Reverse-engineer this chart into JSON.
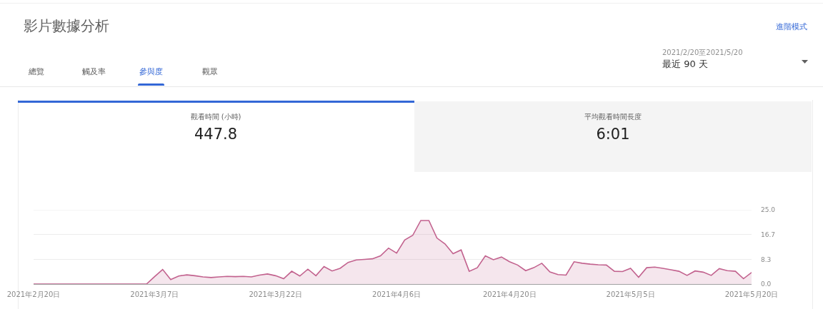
{
  "chart_data": {
    "type": "area",
    "title": "影片數據分析",
    "annotations": [
      "進階模式",
      "總覽",
      "觸及率",
      "參與度",
      "觀眾",
      "2021/2/20至2021/5/20",
      "最近 90 天",
      "觀看時間 (小時)",
      "447.8",
      "平均觀看時間長度",
      "6:01"
    ],
    "x": [
      "2021-02-20",
      "2021-02-21",
      "2021-02-22",
      "2021-02-23",
      "2021-02-24",
      "2021-02-25",
      "2021-02-26",
      "2021-02-27",
      "2021-02-28",
      "2021-03-01",
      "2021-03-02",
      "2021-03-03",
      "2021-03-04",
      "2021-03-05",
      "2021-03-06",
      "2021-03-07",
      "2021-03-08",
      "2021-03-09",
      "2021-03-10",
      "2021-03-11",
      "2021-03-12",
      "2021-03-13",
      "2021-03-14",
      "2021-03-15",
      "2021-03-16",
      "2021-03-17",
      "2021-03-18",
      "2021-03-19",
      "2021-03-20",
      "2021-03-21",
      "2021-03-22",
      "2021-03-23",
      "2021-03-24",
      "2021-03-25",
      "2021-03-26",
      "2021-03-27",
      "2021-03-28",
      "2021-03-29",
      "2021-03-30",
      "2021-03-31",
      "2021-04-01",
      "2021-04-02",
      "2021-04-03",
      "2021-04-04",
      "2021-04-05",
      "2021-04-06",
      "2021-04-07",
      "2021-04-08",
      "2021-04-09",
      "2021-04-10",
      "2021-04-11",
      "2021-04-12",
      "2021-04-13",
      "2021-04-14",
      "2021-04-15",
      "2021-04-16",
      "2021-04-17",
      "2021-04-18",
      "2021-04-19",
      "2021-04-20",
      "2021-04-21",
      "2021-04-22",
      "2021-04-23",
      "2021-04-24",
      "2021-04-25",
      "2021-04-26",
      "2021-04-27",
      "2021-04-28",
      "2021-04-29",
      "2021-04-30",
      "2021-05-01",
      "2021-05-02",
      "2021-05-03",
      "2021-05-04",
      "2021-05-05",
      "2021-05-06",
      "2021-05-07",
      "2021-05-08",
      "2021-05-09",
      "2021-05-10",
      "2021-05-11",
      "2021-05-12",
      "2021-05-13",
      "2021-05-14",
      "2021-05-15",
      "2021-05-16",
      "2021-05-17",
      "2021-05-18",
      "2021-05-19",
      "2021-05-20"
    ],
    "values": [
      0,
      0,
      0,
      0,
      0,
      0,
      0,
      0,
      0,
      0,
      0,
      0,
      0,
      0,
      0,
      2.5,
      4.9,
      1.5,
      2.7,
      3.1,
      2.8,
      2.4,
      2.2,
      2.4,
      2.6,
      2.5,
      2.6,
      2.4,
      3.0,
      3.4,
      2.8,
      1.8,
      4.3,
      2.7,
      5.0,
      2.8,
      5.9,
      4.4,
      5.3,
      7.3,
      8.1,
      8.3,
      8.5,
      9.5,
      12.1,
      10.4,
      14.8,
      16.4,
      21.4,
      21.4,
      15.5,
      13.5,
      10.2,
      11.5,
      4.3,
      5.5,
      9.5,
      8.2,
      9.1,
      7.5,
      6.4,
      4.5,
      5.5,
      7.0,
      4.1,
      3.2,
      3.0,
      7.5,
      7.0,
      6.7,
      6.5,
      6.4,
      4.3,
      4.2,
      5.3,
      2.3,
      5.5,
      5.7,
      5.3,
      4.8,
      4.3,
      2.9,
      4.4,
      4.0,
      2.9,
      5.2,
      4.5,
      4.3,
      1.8,
      3.9
    ],
    "color": "#c2628e",
    "line_style": "solid",
    "xlim": [
      "2021-02-20",
      "2021-05-20"
    ],
    "xticks": [
      {
        "value": "2021-02-20",
        "label": "2021年2月20日"
      },
      {
        "value": "2021-03-07",
        "label": "2021年3月7日"
      },
      {
        "value": "2021-03-22",
        "label": "2021年3月22日"
      },
      {
        "value": "2021-04-06",
        "label": "2021年4月6日"
      },
      {
        "value": "2021-04-20",
        "label": "2021年4月20日"
      },
      {
        "value": "2021-05-05",
        "label": "2021年5月5日"
      },
      {
        "value": "2021-05-20",
        "label": "2021年5月20日"
      }
    ],
    "ylim": [
      0,
      25
    ],
    "yticks": [
      {
        "value": 0,
        "label": "0.0"
      },
      8.3,
      16.7,
      {
        "value": 25,
        "label": "25.0"
      }
    ],
    "grid": "y"
  }
}
